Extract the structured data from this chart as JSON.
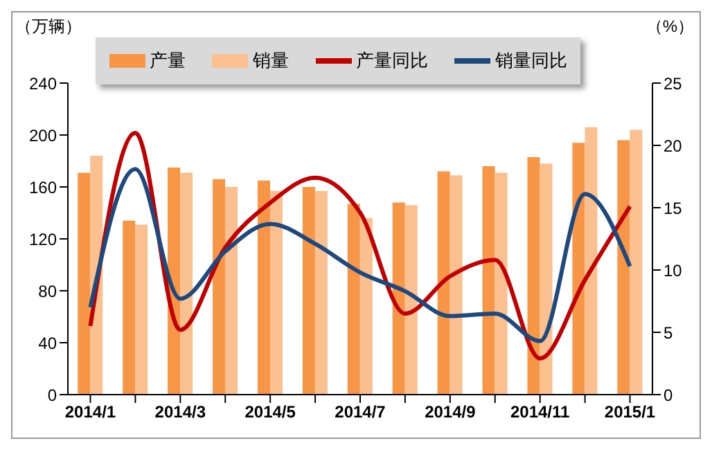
{
  "chart_data": {
    "type": "bar",
    "ylabel": "（万辆）",
    "y2label": "（%）",
    "categories": [
      "2014/1",
      null,
      "2014/3",
      null,
      "2014/5",
      null,
      "2014/7",
      null,
      "2014/9",
      null,
      "2014/11",
      null,
      "2015/1"
    ],
    "series": [
      {
        "name": "产量",
        "color": "#f79646",
        "values": [
          171,
          134,
          175,
          166,
          165,
          160,
          147,
          148,
          172,
          176,
          183,
          194,
          196
        ]
      },
      {
        "name": "销量",
        "color": "#fac090",
        "values": [
          184,
          131,
          171,
          160,
          157,
          157,
          136,
          146,
          169,
          171,
          178,
          206,
          204
        ]
      },
      {
        "name": "产量同比",
        "type": "line",
        "axis": "y2",
        "color": "#c00000",
        "values": [
          5.5,
          21,
          5.2,
          11.8,
          15.4,
          17.4,
          14.6,
          6.5,
          9.5,
          10.8,
          2.9,
          9.2,
          15.1
        ]
      },
      {
        "name": "销量同比",
        "type": "line",
        "axis": "y2",
        "color": "#1f497d",
        "values": [
          7.0,
          18.1,
          7.7,
          11.5,
          13.7,
          12.1,
          9.8,
          8.3,
          6.3,
          6.5,
          4.3,
          16.1,
          10.3
        ]
      }
    ],
    "ylim": [
      0,
      240
    ],
    "yticks": [
      0,
      40,
      80,
      120,
      160,
      200,
      240
    ],
    "y2lim": [
      0,
      25
    ],
    "y2ticks": [
      0,
      5,
      10,
      15,
      20,
      25
    ],
    "legend": "top",
    "grid": false,
    "marker": "none"
  }
}
